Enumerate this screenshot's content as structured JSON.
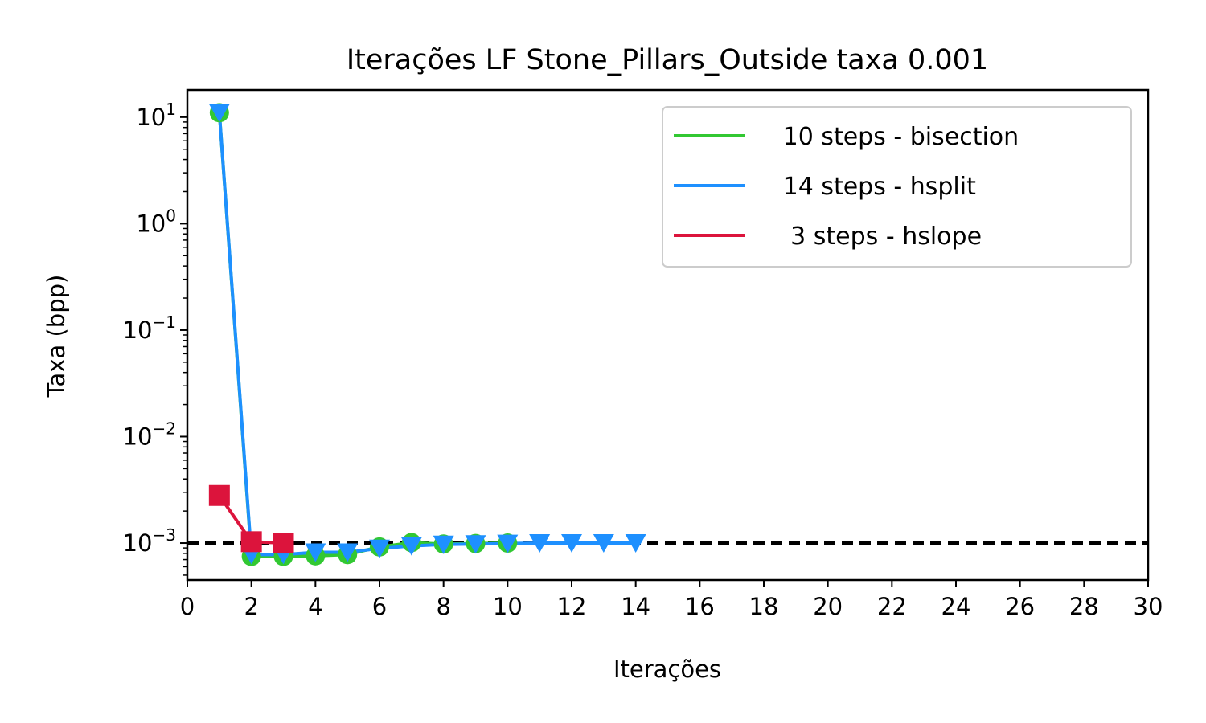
{
  "chart_data": {
    "type": "line",
    "title": "Iterações LF Stone_Pillars_Outside taxa 0.001",
    "xlabel": "Iterações",
    "ylabel": "Taxa (bpp)",
    "xlim": [
      0,
      30
    ],
    "ylim": [
      0.00045,
      18
    ],
    "yscale": "log",
    "xticks": [
      0,
      2,
      4,
      6,
      8,
      10,
      12,
      14,
      16,
      18,
      20,
      22,
      24,
      26,
      28,
      30
    ],
    "yticks": [
      {
        "value": 10,
        "base": "10",
        "exp": "1"
      },
      {
        "value": 1,
        "base": "10",
        "exp": "0"
      },
      {
        "value": 0.1,
        "base": "10",
        "exp": "−1"
      },
      {
        "value": 0.01,
        "base": "10",
        "exp": "−2"
      },
      {
        "value": 0.001,
        "base": "10",
        "exp": "−3"
      }
    ],
    "reference_line": {
      "y": 0.001,
      "style": "dashed",
      "color": "#000000"
    },
    "legend_position": "top-right",
    "grid": false,
    "series": [
      {
        "name": "   10 steps - bisection",
        "color": "#32c832",
        "marker": "circle",
        "x": [
          1,
          2,
          3,
          4,
          5,
          6,
          7,
          8,
          9,
          10
        ],
        "y": [
          11,
          0.00075,
          0.00075,
          0.00076,
          0.00078,
          0.00092,
          0.00101,
          0.00098,
          0.00099,
          0.001
        ]
      },
      {
        "name": "   14 steps - hsplit",
        "color": "#1e90ff",
        "marker": "triangle-down",
        "x": [
          1,
          2,
          3,
          4,
          5,
          6,
          7,
          8,
          9,
          10,
          11,
          12,
          13,
          14
        ],
        "y": [
          11,
          0.00078,
          0.00078,
          0.00082,
          0.00082,
          0.00089,
          0.00094,
          0.00097,
          0.00098,
          0.00099,
          0.001,
          0.001,
          0.001,
          0.001
        ]
      },
      {
        "name": "    3 steps - hslope",
        "color": "#dc143c",
        "marker": "square",
        "x": [
          1,
          2,
          3
        ],
        "y": [
          0.0028,
          0.00103,
          0.001
        ]
      }
    ]
  }
}
